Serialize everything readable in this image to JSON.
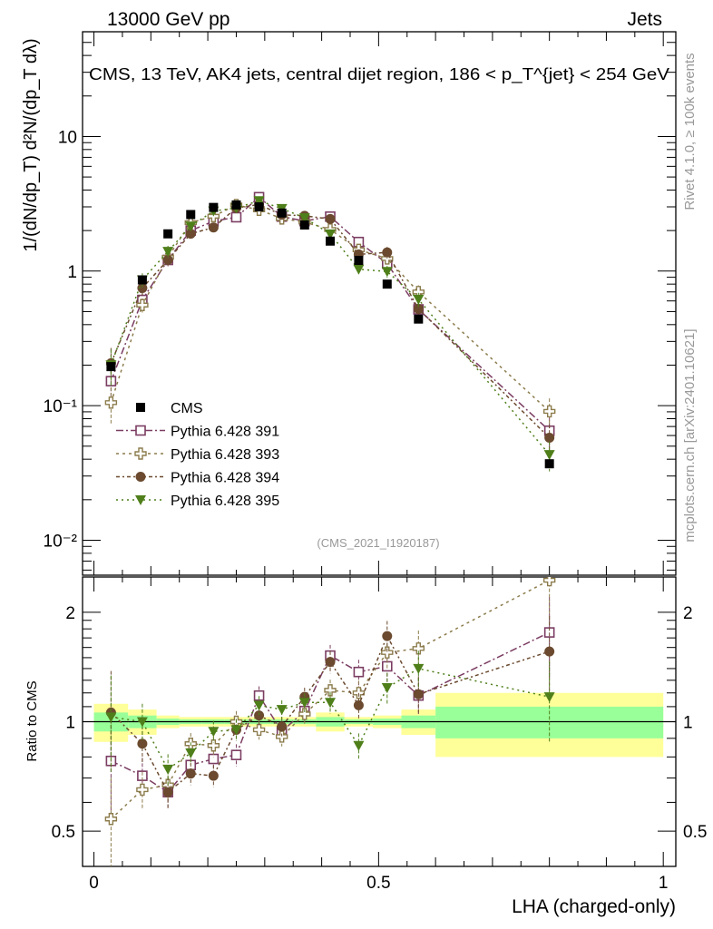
{
  "header": {
    "left": "13000 GeV pp",
    "right": "Jets"
  },
  "side": {
    "rivet": "Rivet 4.1.0, ≥ 100k events",
    "mcplots": "mcplots.cern.ch [arXiv:2401.10621]"
  },
  "chart_data": {
    "type": "line",
    "title": "CMS, 13 TeV, AK4 jets, central dijet region, 186 < p_T^{jet} < 254 GeV",
    "analysis_tag": "(CMS_2021_I1920187)",
    "xlabel": "LHA (charged-only)",
    "ylabel": "1/(dN/dp_T) d²N/(dp_T dλ)",
    "ratio_ylabel": "Ratio to CMS",
    "xlim": [
      -0.02,
      1.022
    ],
    "ylim": [
      0.0055,
      60
    ],
    "yscale": "log",
    "ratio_ylim": [
      0.4,
      2.5
    ],
    "ratio_yscale": "log",
    "x_ticks": [
      {
        "v": 0,
        "label": "0"
      },
      {
        "v": 0.5,
        "label": "0.5"
      },
      {
        "v": 1,
        "label": "1"
      }
    ],
    "y_ticks": [
      {
        "v": 0.01,
        "label": "10⁻²"
      },
      {
        "v": 0.1,
        "label": "10⁻¹"
      },
      {
        "v": 1,
        "label": "1"
      },
      {
        "v": 10,
        "label": "10"
      }
    ],
    "ratio_ticks": [
      {
        "v": 0.5,
        "label": "0.5"
      },
      {
        "v": 1,
        "label": "1"
      },
      {
        "v": 2,
        "label": "2"
      }
    ],
    "legend_position": "lower-left",
    "bin_edges": [
      0,
      0.06,
      0.11,
      0.15,
      0.19,
      0.23,
      0.27,
      0.31,
      0.35,
      0.39,
      0.44,
      0.49,
      0.54,
      0.6,
      1.0
    ],
    "x": [
      0.03,
      0.085,
      0.13,
      0.17,
      0.21,
      0.25,
      0.29,
      0.33,
      0.37,
      0.415,
      0.465,
      0.515,
      0.57,
      0.8
    ],
    "data": {
      "name": "CMS",
      "color": "#000000",
      "values": [
        0.195,
        0.86,
        1.89,
        2.63,
        2.97,
        3.1,
        3.0,
        2.7,
        2.2,
        1.67,
        1.2,
        0.8,
        0.44,
        0.037
      ],
      "stat_band": [
        0.06,
        0.04,
        0.02,
        0.015,
        0.015,
        0.015,
        0.015,
        0.015,
        0.015,
        0.03,
        0.015,
        0.02,
        0.04,
        0.1
      ],
      "total_band": [
        0.12,
        0.08,
        0.04,
        0.03,
        0.03,
        0.03,
        0.03,
        0.03,
        0.03,
        0.06,
        0.03,
        0.04,
        0.08,
        0.2
      ]
    },
    "mc_rel_err": [
      0.3,
      0.12,
      0.1,
      0.07,
      0.07,
      0.07,
      0.06,
      0.06,
      0.06,
      0.07,
      0.08,
      0.1,
      0.12,
      0.25
    ],
    "series": [
      {
        "name": "Pythia 6.428 391",
        "color": "#7b3d62",
        "marker": "open-square",
        "ratio": [
          0.78,
          0.71,
          0.64,
          0.76,
          0.79,
          0.81,
          1.18,
          0.94,
          1.07,
          1.52,
          1.37,
          1.42,
          1.18,
          1.76
        ]
      },
      {
        "name": "Pythia 6.428 393",
        "color": "#8c7c4c",
        "marker": "open-cross",
        "ratio": [
          0.54,
          0.65,
          0.67,
          0.87,
          0.86,
          1.0,
          0.95,
          0.91,
          1.05,
          1.22,
          1.2,
          1.55,
          1.59,
          2.45
        ]
      },
      {
        "name": "Pythia 6.428 394",
        "color": "#6b4a2f",
        "marker": "filled-circle",
        "ratio": [
          1.06,
          0.87,
          0.64,
          0.72,
          0.71,
          0.95,
          1.04,
          0.97,
          1.17,
          1.46,
          1.11,
          1.72,
          1.19,
          1.56
        ]
      },
      {
        "name": "Pythia 6.428 395",
        "color": "#4f7f1a",
        "marker": "filled-triangle-down",
        "ratio": [
          1.03,
          1.0,
          0.74,
          0.82,
          0.94,
          0.95,
          1.11,
          1.08,
          1.13,
          1.13,
          0.86,
          1.24,
          1.4,
          1.17
        ]
      }
    ]
  }
}
